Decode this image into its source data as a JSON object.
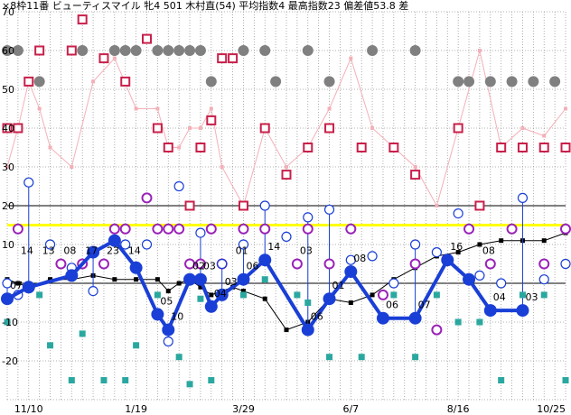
{
  "caption": "×8枠11番 ビューティスマイル 牝4 501 木村直(54) 平均指数4 最高指数23 偏差値53.8 差",
  "chart_data": {
    "type": "line",
    "title": "×8枠11番 ビューティスマイル 牝4 501 木村直(54) 平均指数4 最高指数23 偏差値53.8 差",
    "ylim": [
      -30,
      70
    ],
    "y_ticks": [
      70,
      60,
      50,
      40,
      30,
      20,
      10,
      -10,
      -20
    ],
    "y_tick_labels": [
      "70",
      "60",
      "50",
      "40",
      "30",
      "20",
      "10",
      "-10",
      "-20"
    ],
    "x_tick_labels": [
      "11/10",
      "1/19",
      "3/29",
      "6/7",
      "8/16",
      "10/25"
    ],
    "x_tick_index": [
      2,
      12,
      22,
      32,
      42,
      52
    ],
    "x_count": 53,
    "grid": true,
    "reference_line": {
      "value": 15,
      "color": "#ffff00"
    },
    "colors": {
      "main_line": "#1a3fd6",
      "black_line": "#000000",
      "gray_dots": "#808080",
      "crimson_squares": "#c8204a",
      "pink_line": "#f4b0b8",
      "purple_circles": "#9a22b8",
      "blue_circles": "#1a3fd6",
      "teal_squares": "#2aa8a0"
    },
    "series": [
      {
        "kind": "main",
        "points": [
          [
            0,
            -4
          ],
          [
            2,
            -1
          ],
          [
            6,
            2
          ],
          [
            8,
            8
          ],
          [
            10,
            11
          ],
          [
            12,
            4
          ],
          [
            14,
            -8
          ],
          [
            15,
            -12
          ],
          [
            17,
            1
          ],
          [
            18,
            1
          ],
          [
            19,
            -6
          ],
          [
            20,
            -3
          ],
          [
            22,
            1
          ],
          [
            24,
            6
          ],
          [
            28,
            -12
          ],
          [
            30,
            -4
          ],
          [
            32,
            3
          ],
          [
            35,
            -9
          ],
          [
            38,
            -9
          ],
          [
            41,
            6
          ],
          [
            43,
            1
          ],
          [
            45,
            -7
          ],
          [
            48,
            -7
          ]
        ],
        "labels": [
          [
            0,
            "07"
          ],
          [
            1,
            "14"
          ],
          [
            3,
            "13"
          ],
          [
            5,
            "08"
          ],
          [
            7,
            "17"
          ],
          [
            9,
            "23"
          ],
          [
            11,
            "14"
          ],
          [
            14,
            "05"
          ],
          [
            15,
            "10"
          ],
          [
            17,
            "02"
          ],
          [
            18,
            "03"
          ],
          [
            19,
            "04"
          ],
          [
            20,
            "03"
          ],
          [
            21,
            "01"
          ],
          [
            22,
            "06"
          ],
          [
            24,
            "14"
          ],
          [
            27,
            "03"
          ],
          [
            28,
            "06"
          ],
          [
            30,
            "01"
          ],
          [
            32,
            "08"
          ],
          [
            35,
            "06"
          ],
          [
            38,
            "07"
          ],
          [
            41,
            "16"
          ],
          [
            44,
            "08"
          ],
          [
            45,
            "04"
          ],
          [
            48,
            "03"
          ]
        ]
      },
      {
        "kind": "black_line",
        "points": [
          [
            0,
            1
          ],
          [
            1,
            0
          ],
          [
            2,
            -1
          ],
          [
            4,
            1
          ],
          [
            6,
            1
          ],
          [
            8,
            2
          ],
          [
            10,
            1
          ],
          [
            12,
            1
          ],
          [
            14,
            1
          ],
          [
            15,
            -2
          ],
          [
            16,
            0
          ],
          [
            17,
            1
          ],
          [
            18,
            -1
          ],
          [
            19,
            -3
          ],
          [
            20,
            -2
          ],
          [
            21,
            -1
          ],
          [
            22,
            -2
          ],
          [
            24,
            -4
          ],
          [
            26,
            -12
          ],
          [
            28,
            -10
          ],
          [
            30,
            -4
          ],
          [
            32,
            -5
          ],
          [
            34,
            -3
          ],
          [
            36,
            1
          ],
          [
            38,
            4
          ],
          [
            40,
            7
          ],
          [
            42,
            8
          ],
          [
            44,
            10
          ],
          [
            46,
            11
          ],
          [
            48,
            11
          ],
          [
            50,
            11
          ],
          [
            52,
            13
          ]
        ]
      },
      {
        "kind": "gray_dots",
        "points": [
          [
            0,
            60
          ],
          [
            1,
            60
          ],
          [
            3,
            52
          ],
          [
            7,
            60
          ],
          [
            10,
            60
          ],
          [
            11,
            60
          ],
          [
            12,
            60
          ],
          [
            14,
            60
          ],
          [
            15,
            60
          ],
          [
            16,
            60
          ],
          [
            17,
            60
          ],
          [
            18,
            60
          ],
          [
            19,
            52
          ],
          [
            22,
            60
          ],
          [
            24,
            60
          ],
          [
            25,
            52
          ],
          [
            28,
            60
          ],
          [
            30,
            52
          ],
          [
            34,
            60
          ],
          [
            38,
            60
          ],
          [
            42,
            52
          ],
          [
            43,
            52
          ],
          [
            45,
            52
          ],
          [
            47,
            52
          ],
          [
            49,
            52
          ],
          [
            51,
            52
          ]
        ]
      },
      {
        "kind": "crimson_squares",
        "points": [
          [
            0,
            40
          ],
          [
            1,
            40
          ],
          [
            2,
            52
          ],
          [
            3,
            60
          ],
          [
            6,
            60
          ],
          [
            7,
            68
          ],
          [
            9,
            58
          ],
          [
            11,
            52
          ],
          [
            13,
            63
          ],
          [
            14,
            40
          ],
          [
            15,
            35
          ],
          [
            17,
            20
          ],
          [
            18,
            35
          ],
          [
            19,
            42
          ],
          [
            20,
            58
          ],
          [
            21,
            58
          ],
          [
            22,
            20
          ],
          [
            24,
            40
          ],
          [
            26,
            28
          ],
          [
            28,
            35
          ],
          [
            30,
            40
          ],
          [
            33,
            35
          ],
          [
            36,
            35
          ],
          [
            38,
            28
          ],
          [
            42,
            40
          ],
          [
            44,
            20
          ],
          [
            46,
            35
          ],
          [
            48,
            35
          ],
          [
            50,
            35
          ],
          [
            52,
            35
          ]
        ]
      },
      {
        "kind": "pink_line",
        "points": [
          [
            0,
            30
          ],
          [
            1,
            40
          ],
          [
            2,
            52
          ],
          [
            3,
            45
          ],
          [
            4,
            35
          ],
          [
            6,
            30
          ],
          [
            8,
            52
          ],
          [
            10,
            58
          ],
          [
            12,
            45
          ],
          [
            14,
            45
          ],
          [
            15,
            35
          ],
          [
            16,
            35
          ],
          [
            17,
            40
          ],
          [
            18,
            40
          ],
          [
            19,
            45
          ],
          [
            20,
            30
          ],
          [
            22,
            20
          ],
          [
            24,
            40
          ],
          [
            26,
            30
          ],
          [
            28,
            35
          ],
          [
            30,
            45
          ],
          [
            32,
            58
          ],
          [
            34,
            40
          ],
          [
            36,
            35
          ],
          [
            38,
            30
          ],
          [
            40,
            20
          ],
          [
            42,
            40
          ],
          [
            44,
            60
          ],
          [
            46,
            35
          ],
          [
            48,
            40
          ],
          [
            50,
            38
          ],
          [
            52,
            45
          ]
        ]
      },
      {
        "kind": "purple_circles",
        "points": [
          [
            1,
            14
          ],
          [
            5,
            5
          ],
          [
            7,
            5
          ],
          [
            9,
            5
          ],
          [
            10,
            14
          ],
          [
            11,
            14
          ],
          [
            13,
            22
          ],
          [
            14,
            14
          ],
          [
            15,
            14
          ],
          [
            16,
            14
          ],
          [
            17,
            5
          ],
          [
            18,
            5
          ],
          [
            19,
            14
          ],
          [
            20,
            5
          ],
          [
            22,
            14
          ],
          [
            24,
            14
          ],
          [
            27,
            5
          ],
          [
            28,
            14
          ],
          [
            30,
            5
          ],
          [
            32,
            14
          ],
          [
            35,
            -3
          ],
          [
            38,
            5
          ],
          [
            40,
            -12
          ],
          [
            43,
            14
          ],
          [
            45,
            5
          ],
          [
            47,
            14
          ],
          [
            50,
            5
          ],
          [
            52,
            14
          ]
        ]
      },
      {
        "kind": "blue_circles",
        "points": [
          [
            0,
            0
          ],
          [
            1,
            -3
          ],
          [
            2,
            26
          ],
          [
            4,
            10
          ],
          [
            6,
            4
          ],
          [
            8,
            -2
          ],
          [
            11,
            10
          ],
          [
            13,
            10
          ],
          [
            15,
            -15
          ],
          [
            16,
            25
          ],
          [
            18,
            13
          ],
          [
            20,
            5
          ],
          [
            22,
            10
          ],
          [
            24,
            20
          ],
          [
            26,
            12
          ],
          [
            28,
            17
          ],
          [
            30,
            19
          ],
          [
            32,
            6
          ],
          [
            34,
            7
          ],
          [
            36,
            0
          ],
          [
            38,
            10
          ],
          [
            40,
            8
          ],
          [
            42,
            18
          ],
          [
            44,
            2
          ],
          [
            46,
            0
          ],
          [
            48,
            22
          ],
          [
            50,
            1
          ],
          [
            52,
            5
          ]
        ]
      },
      {
        "kind": "teal_squares",
        "points": [
          [
            0,
            -10
          ],
          [
            1,
            -3
          ],
          [
            3,
            -3
          ],
          [
            4,
            -16
          ],
          [
            6,
            -25
          ],
          [
            7,
            -13
          ],
          [
            9,
            -25
          ],
          [
            11,
            -25
          ],
          [
            12,
            -16
          ],
          [
            14,
            -3
          ],
          [
            16,
            -19
          ],
          [
            17,
            -26
          ],
          [
            18,
            -4
          ],
          [
            19,
            -25
          ],
          [
            20,
            -3
          ],
          [
            22,
            -3
          ],
          [
            24,
            1
          ],
          [
            27,
            -3
          ],
          [
            28,
            -5
          ],
          [
            30,
            -19
          ],
          [
            33,
            -19
          ],
          [
            36,
            -3
          ],
          [
            38,
            -19
          ],
          [
            40,
            -3
          ],
          [
            42,
            -10
          ],
          [
            44,
            -10
          ],
          [
            46,
            -25
          ],
          [
            48,
            -3
          ],
          [
            50,
            -3
          ],
          [
            52,
            -25
          ]
        ]
      }
    ]
  }
}
